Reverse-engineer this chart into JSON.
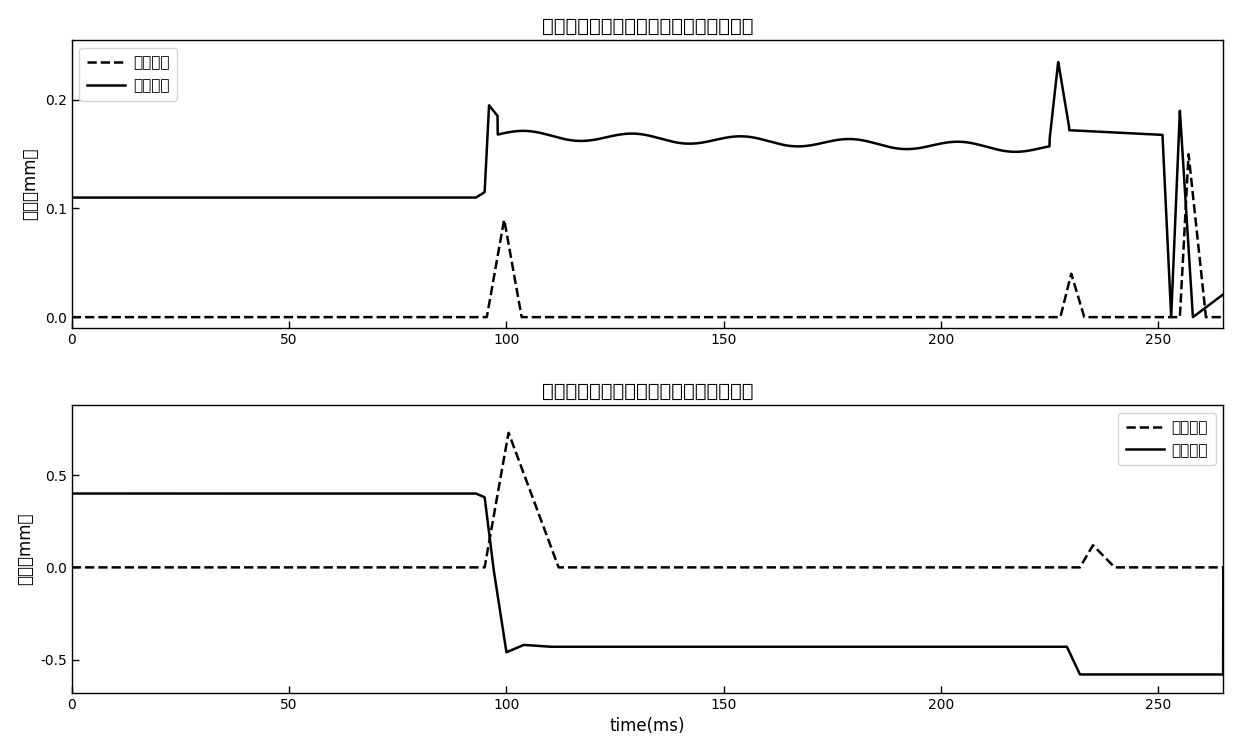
{
  "title1": "位移信号曲线和实时监测曲线（工况三）",
  "title2": "位移信号曲线和实时监测曲线（工况四）",
  "ylabel": "幅値（mm）",
  "xlabel": "time(ms)",
  "legend_solid": "位移曲线",
  "legend_dashed": "监测曲线",
  "xlim": [
    0,
    265
  ],
  "ylim1": [
    -0.01,
    0.255
  ],
  "ylim2": [
    -0.68,
    0.88
  ],
  "yticks1": [
    0,
    0.1,
    0.2
  ],
  "yticks2": [
    -0.5,
    0,
    0.5
  ],
  "xticks": [
    0,
    50,
    100,
    150,
    200,
    250
  ]
}
